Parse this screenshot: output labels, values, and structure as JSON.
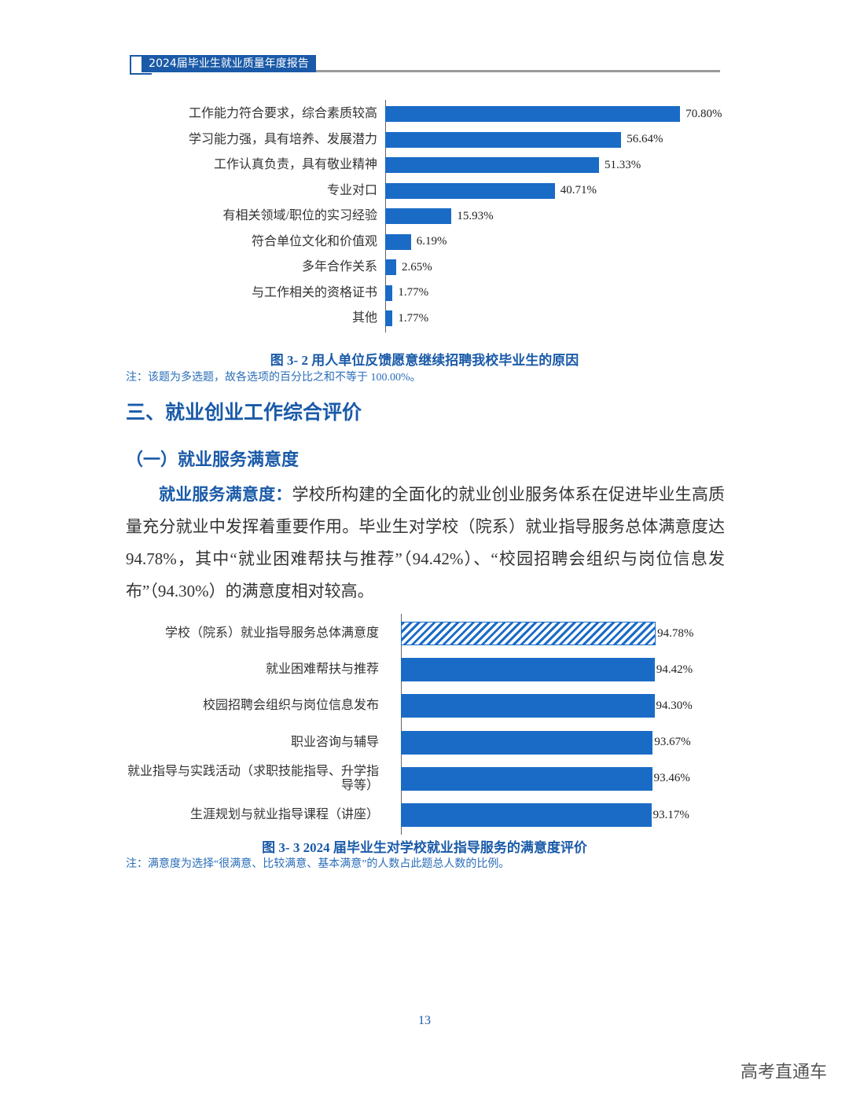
{
  "header": {
    "title": "2024届毕业生就业质量年度报告"
  },
  "chart_data": [
    {
      "type": "bar",
      "orientation": "horizontal",
      "color": "#1a6bc6",
      "categories": [
        "工作能力符合要求，综合素质较高",
        "学习能力强，具有培养、发展潜力",
        "工作认真负责，具有敬业精神",
        "专业对口",
        "有相关领域/职位的实习经验",
        "符合单位文化和价值观",
        "多年合作关系",
        "与工作相关的资格证书",
        "其他"
      ],
      "values": [
        70.8,
        56.64,
        51.33,
        40.71,
        15.93,
        6.19,
        2.65,
        1.77,
        1.77
      ],
      "value_labels": [
        "70.80%",
        "56.64%",
        "51.33%",
        "40.71%",
        "15.93%",
        "6.19%",
        "2.65%",
        "1.77%",
        "1.77%"
      ],
      "title": "图 3- 2 用人单位反馈愿意继续招聘我校毕业生的原因",
      "note": "注：该题为多选题，故各选项的百分比之和不等于 100.00%。"
    },
    {
      "type": "bar",
      "orientation": "horizontal",
      "color": "#1a6bc6",
      "categories": [
        "学校（院系）就业指导服务总体满意度",
        "就业困难帮扶与推荐",
        "校园招聘会组织与岗位信息发布",
        "职业咨询与辅导",
        "就业指导与实践活动（求职技能指导、升学指导等）",
        "生涯规划与就业指导课程（讲座）"
      ],
      "values": [
        94.78,
        94.42,
        94.3,
        93.67,
        93.46,
        93.17
      ],
      "value_labels": [
        "94.78%",
        "94.42%",
        "94.30%",
        "93.67%",
        "93.46%",
        "93.17%"
      ],
      "title": "图 3- 3 2024 届毕业生对学校就业指导服务的满意度评价",
      "note": "注：满意度为选择“很满意、比较满意、基本满意”的人数占此题总人数的比例。"
    }
  ],
  "section": {
    "heading": "三、就业创业工作综合评价",
    "subheading": "（一）就业服务满意度"
  },
  "paragraph": {
    "lead": "就业服务满意度：",
    "text": "学校所构建的全面化的就业创业服务体系在促进毕业生高质量充分就业中发挥着重要作用。毕业生对学校（院系）就业指导服务总体满意度达 94.78%，其中“就业困难帮扶与推荐”（94.42%）、“校园招聘会组织与岗位信息发布”（94.30%）的满意度相对较高。"
  },
  "page_number": "13",
  "watermark": "高考直通车"
}
